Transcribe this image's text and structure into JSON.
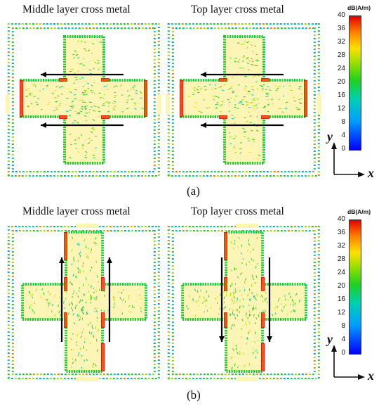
{
  "panels": [
    {
      "caption": "(a)",
      "left_title": "Middle layer cross metal",
      "right_title": "Top layer cross metal",
      "current_direction": "horizontal"
    },
    {
      "caption": "(b)",
      "left_title": "Middle layer cross metal",
      "right_title": "Top layer cross metal",
      "current_direction": "vertical"
    }
  ],
  "colorbar": {
    "unit": "dB(A/m)",
    "ticks": [
      "40",
      "36",
      "32",
      "28",
      "24",
      "20",
      "16",
      "12",
      "8",
      "4",
      "0"
    ],
    "colors": [
      "#0000ff",
      "#00a0ff",
      "#00d0b0",
      "#20d020",
      "#a0e000",
      "#ffe000",
      "#ff8000",
      "#e00000"
    ]
  },
  "axes": {
    "y": "y",
    "x": "x"
  }
}
